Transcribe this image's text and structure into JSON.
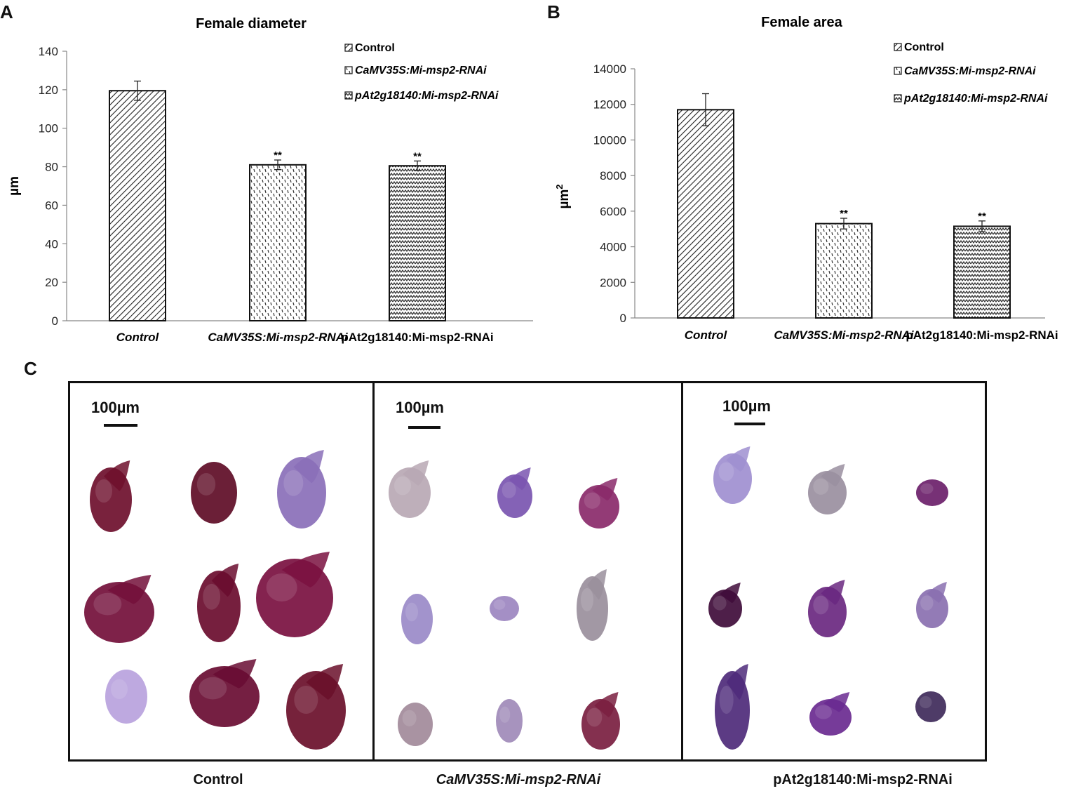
{
  "panels": {
    "a_letter": "A",
    "b_letter": "B",
    "c_letter": "C"
  },
  "chart_data": [
    {
      "type": "bar",
      "title": "Female  diameter",
      "ylabel": "µm",
      "xlabel": "",
      "categories": [
        "Control",
        "CaMV35S:Mi-msp2-RNAi",
        "pAt2g18140:Mi-msp2-RNAi"
      ],
      "values": [
        119.5,
        81,
        80.5
      ],
      "errors": [
        5,
        2.5,
        2.5
      ],
      "significance": [
        "",
        "**",
        "**"
      ],
      "ylim": [
        0,
        140
      ],
      "yticks": [
        0,
        20,
        40,
        60,
        80,
        100,
        120,
        140
      ],
      "legend": [
        "Control",
        "CaMV35S:Mi-msp2-RNAi",
        "pAt2g18140:Mi-msp2-RNAi"
      ],
      "legend_position": "top-right",
      "patterns": [
        "diagonal",
        "dashes",
        "zigzag"
      ],
      "grid": false
    },
    {
      "type": "bar",
      "title": "Female area",
      "ylabel": "µm2",
      "xlabel": "",
      "categories": [
        "Control",
        "CaMV35S:Mi-msp2-RNAi",
        "pAt2g18140:Mi-msp2-RNAi"
      ],
      "values": [
        11700,
        5300,
        5150
      ],
      "errors": [
        900,
        300,
        300
      ],
      "significance": [
        "",
        "**",
        "**"
      ],
      "ylim": [
        0,
        14000
      ],
      "yticks": [
        0,
        2000,
        4000,
        6000,
        8000,
        10000,
        12000,
        14000
      ],
      "legend": [
        "Control",
        "CaMV35S:Mi-msp2-RNAi",
        "pAt2g18140:Mi-msp2-RNAi"
      ],
      "legend_position": "top-right",
      "patterns": [
        "diagonal",
        "dashes",
        "zigzag"
      ],
      "grid": false
    }
  ],
  "micrographs": {
    "scale_label": "100µm",
    "panels": [
      {
        "label": "Control",
        "tone": "#7a1030",
        "specimens": [
          {
            "color": "#6e0f2c"
          },
          {
            "color": "#5e0c26"
          },
          {
            "color": "#8a6fb8"
          },
          {
            "color": "#730f3a"
          },
          {
            "color": "#6a0c2e"
          },
          {
            "color": "#7a1040"
          },
          {
            "color": "#b9a2dd"
          },
          {
            "color": "#690c32"
          },
          {
            "color": "#6a0f2a"
          }
        ]
      },
      {
        "label": "CaMV35S:Mi-msp2-RNAi",
        "tone": "#8f7ab0",
        "specimens": [
          {
            "color": "#b8a8b4"
          },
          {
            "color": "#7a55b0"
          },
          {
            "color": "#8a2a6a"
          },
          {
            "color": "#9a8ac8"
          },
          {
            "color": "#9c86c0"
          },
          {
            "color": "#9a8f9c"
          },
          {
            "color": "#a28a9a"
          },
          {
            "color": "#a08ab8"
          },
          {
            "color": "#7a1e40"
          }
        ]
      },
      {
        "label": "pAt2g18140:Mi-msp2-RNAi",
        "tone": "#6a3a90",
        "specimens": [
          {
            "color": "#9f8fd0"
          },
          {
            "color": "#9a8fa0"
          },
          {
            "color": "#6b1f6a"
          },
          {
            "color": "#3f0c3a"
          },
          {
            "color": "#6a2880"
          },
          {
            "color": "#8a70b0"
          },
          {
            "color": "#4e2a7a"
          },
          {
            "color": "#6a2a90"
          },
          {
            "color": "#3f2a5a"
          }
        ]
      }
    ]
  }
}
